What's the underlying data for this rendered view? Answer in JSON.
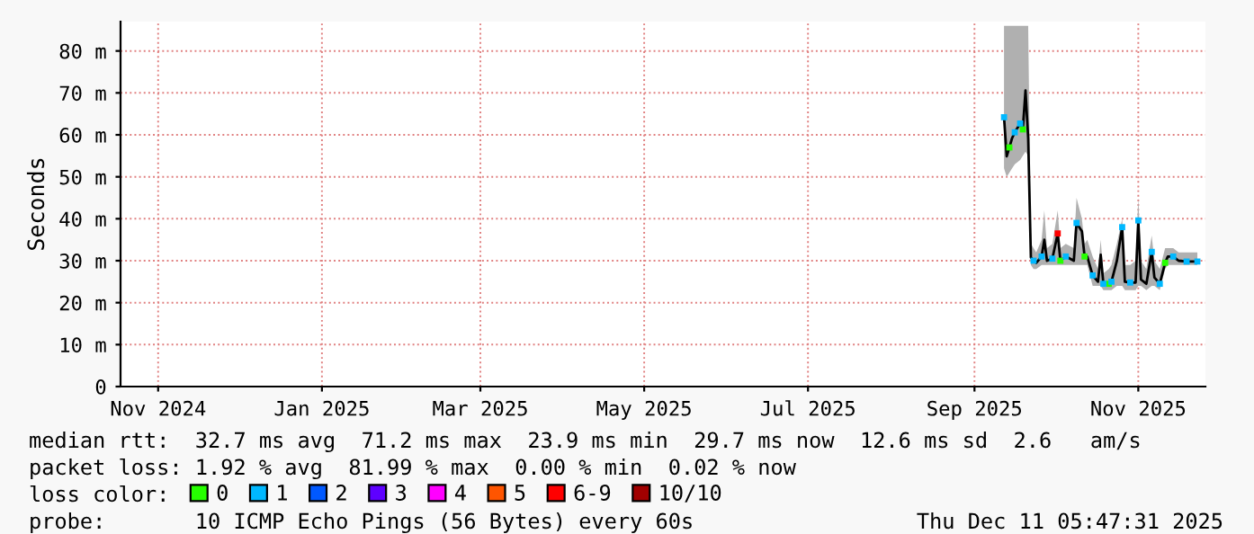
{
  "chart_data": {
    "type": "line",
    "ylabel": "Seconds",
    "xlim": [
      "2024-10-18",
      "2025-11-26"
    ],
    "ylim": [
      0,
      87
    ],
    "xticks": [
      {
        "value": "2024-11-01",
        "label": "Nov 2024"
      },
      {
        "value": "2025-01-01",
        "label": "Jan 2025"
      },
      {
        "value": "2025-03-01",
        "label": "Mar 2025"
      },
      {
        "value": "2025-05-01",
        "label": "May 2025"
      },
      {
        "value": "2025-07-01",
        "label": "Jul 2025"
      },
      {
        "value": "2025-09-01",
        "label": "Sep 2025"
      },
      {
        "value": "2025-11-01",
        "label": "Nov 2025"
      }
    ],
    "yticks": [
      0,
      {
        "value": 10,
        "label": "10 m"
      },
      {
        "value": 20,
        "label": "20 m"
      },
      {
        "value": 30,
        "label": "30 m"
      },
      {
        "value": 40,
        "label": "40 m"
      },
      {
        "value": 50,
        "label": "50 m"
      },
      {
        "value": 60,
        "label": "60 m"
      },
      {
        "value": 70,
        "label": "70 m"
      },
      {
        "value": 80,
        "label": "80 m"
      }
    ],
    "grid": true,
    "legend": "bottom",
    "series": [
      {
        "color": "#000000",
        "x": [
          "2025-09-12",
          "2025-09-13",
          "2025-09-14",
          "2025-09-15",
          "2025-09-16",
          "2025-09-18",
          "2025-09-19",
          "2025-09-20",
          "2025-09-21",
          "2025-09-22",
          "2025-09-23",
          "2025-09-24",
          "2025-09-26",
          "2025-09-27",
          "2025-09-28",
          "2025-09-30",
          "2025-10-02",
          "2025-10-03",
          "2025-10-05",
          "2025-10-08",
          "2025-10-09",
          "2025-10-11",
          "2025-10-12",
          "2025-10-13",
          "2025-10-15",
          "2025-10-17",
          "2025-10-18",
          "2025-10-19",
          "2025-10-21",
          "2025-10-22",
          "2025-10-24",
          "2025-10-26",
          "2025-10-27",
          "2025-10-29",
          "2025-10-31",
          "2025-11-01",
          "2025-11-02",
          "2025-11-04",
          "2025-11-06",
          "2025-11-07",
          "2025-11-09",
          "2025-11-11",
          "2025-11-12",
          "2025-11-14",
          "2025-11-16",
          "2025-11-19",
          "2025-11-23"
        ],
        "values": [
          64.2,
          54.9,
          57,
          59.2,
          60.6,
          62.7,
          61.3,
          70.6,
          59.2,
          30.8,
          30,
          29.5,
          31,
          35,
          30,
          30.5,
          36.5,
          30,
          31,
          30,
          39,
          37,
          31,
          31,
          26.5,
          25,
          31.4,
          24.5,
          24.5,
          25,
          29.9,
          38,
          25,
          24.8,
          24.8,
          39.6,
          25.5,
          24.5,
          32.1,
          26,
          24.5,
          29.5,
          31,
          31,
          30,
          29.8,
          29.8
        ],
        "lower": [
          52,
          50,
          51,
          52,
          53,
          54,
          55,
          56,
          55,
          29,
          28,
          28,
          29,
          29,
          29,
          29,
          29,
          29,
          29,
          29,
          29,
          29,
          29,
          29,
          24,
          24,
          24,
          23,
          23,
          23,
          24,
          24,
          23,
          23,
          23,
          24,
          24,
          23,
          24,
          24,
          23,
          28,
          29,
          29,
          29,
          29,
          29
        ],
        "upper": [
          86,
          86,
          86,
          86,
          86,
          86,
          86,
          86,
          86,
          34,
          33,
          32,
          35,
          42,
          33,
          34,
          42,
          33,
          34,
          33,
          45,
          40,
          34,
          35,
          31,
          28,
          35,
          27,
          28,
          29,
          34,
          40,
          29,
          29,
          30,
          45,
          30,
          28,
          36,
          30,
          28,
          33,
          33,
          33,
          32,
          32,
          32
        ]
      },
      {
        "type": "scatter",
        "name": "0",
        "color": "#26ff00",
        "x": [
          "2025-09-14",
          "2025-09-19",
          "2025-10-03",
          "2025-10-12",
          "2025-10-21",
          "2025-11-11"
        ],
        "values": [
          57,
          61.3,
          30,
          31,
          24.5,
          29.5
        ]
      },
      {
        "type": "scatter",
        "name": "1",
        "color": "#00b8ff",
        "x": [
          "2025-09-12",
          "2025-09-16",
          "2025-09-18",
          "2025-09-23",
          "2025-09-26",
          "2025-09-30",
          "2025-10-05",
          "2025-10-09",
          "2025-10-15",
          "2025-10-19",
          "2025-10-22",
          "2025-10-26",
          "2025-10-29",
          "2025-11-01",
          "2025-11-06",
          "2025-11-09",
          "2025-11-14",
          "2025-11-19",
          "2025-11-23"
        ],
        "values": [
          64.2,
          60.6,
          62.7,
          30,
          31,
          30.5,
          31,
          39,
          26.5,
          24.5,
          25,
          38,
          24.8,
          39.6,
          32.1,
          24.5,
          31,
          29.8,
          29.8
        ]
      },
      {
        "type": "scatter",
        "name": "2",
        "color": "#0059ff"
      },
      {
        "type": "scatter",
        "name": "3",
        "color": "#5e00ff"
      },
      {
        "type": "scatter",
        "name": "4",
        "color": "#ff00ff"
      },
      {
        "type": "scatter",
        "name": "5",
        "color": "#ff5500"
      },
      {
        "type": "scatter",
        "name": "6-9",
        "color": "#ff0000",
        "x": [
          "2025-10-02"
        ],
        "values": [
          36.5
        ]
      },
      {
        "type": "scatter",
        "name": "10/10",
        "color": "#a10000"
      }
    ],
    "annotations": [
      "median rtt:  32.7 ms avg  71.2 ms max  23.9 ms min  29.7 ms now  12.6 ms sd  2.6   am/s",
      "packet loss: 1.92 % avg  81.99 % max  0.00 % min  0.02 % now",
      "loss color:",
      "probe:       10 ICMP Echo Pings (56 Bytes) every 60s",
      "Thu Dec 11 05:47:31 2025"
    ]
  }
}
